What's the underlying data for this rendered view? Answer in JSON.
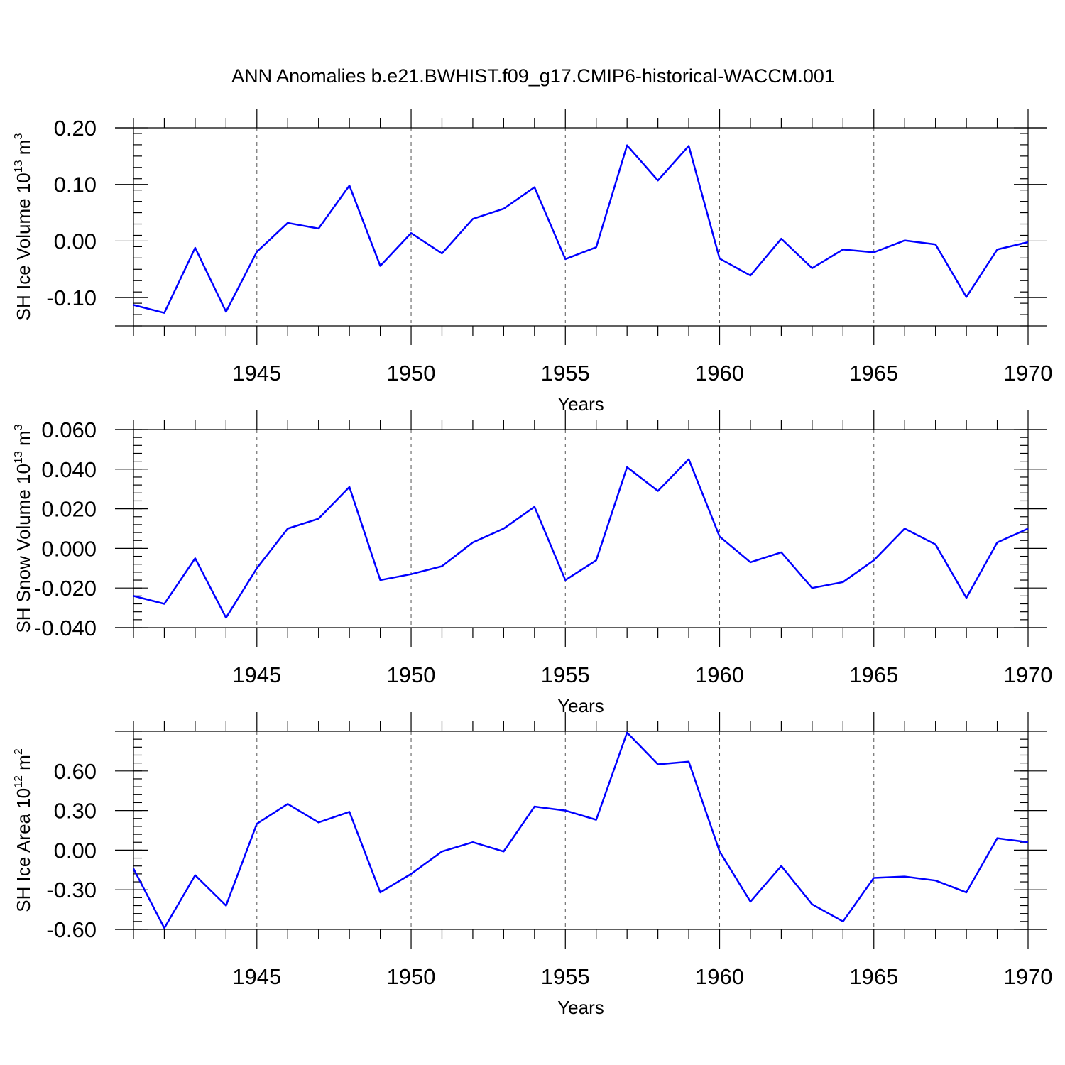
{
  "title": "ANN Anomalies b.e21.BWHIST.f09_g17.CMIP6-historical-WACCM.001",
  "colors": {
    "series": "#0000ff",
    "axis": "#000000",
    "grid": "#555555"
  },
  "chart_data": [
    {
      "type": "line",
      "ylabel_main": "SH Ice Volume 10",
      "ylabel_exp": "13",
      "ylabel_unit": " m",
      "ylabel_unit_exp": "3",
      "xlabel": "Years",
      "xlim": [
        1941,
        1970
      ],
      "ylim": [
        -0.15,
        0.2
      ],
      "yticks": [
        -0.1,
        0.0,
        0.1,
        0.2
      ],
      "ytick_labels": [
        "-0.10",
        "0.00",
        "0.10",
        "0.20"
      ],
      "xticks": [
        1945,
        1950,
        1955,
        1960,
        1965,
        1970
      ],
      "xtick_labels": [
        "1945",
        "1950",
        "1955",
        "1960",
        "1965",
        "1970"
      ],
      "grid_x": [
        1945,
        1950,
        1955,
        1960,
        1965
      ],
      "x": [
        1941,
        1942,
        1943,
        1944,
        1945,
        1946,
        1947,
        1948,
        1949,
        1950,
        1951,
        1952,
        1953,
        1954,
        1955,
        1956,
        1957,
        1958,
        1959,
        1960,
        1961,
        1962,
        1963,
        1964,
        1965,
        1966,
        1967,
        1968,
        1969,
        1970
      ],
      "series": [
        {
          "name": "SH Ice Volume",
          "values": [
            -0.113,
            -0.127,
            -0.012,
            -0.125,
            -0.019,
            0.032,
            0.022,
            0.098,
            -0.044,
            0.014,
            -0.022,
            0.039,
            0.057,
            0.095,
            -0.032,
            -0.011,
            0.169,
            0.107,
            0.168,
            -0.031,
            -0.061,
            0.004,
            -0.048,
            -0.015,
            -0.02,
            0.001,
            -0.006,
            -0.099,
            -0.015,
            -0.002
          ]
        }
      ]
    },
    {
      "type": "line",
      "ylabel_main": "SH Snow Volume 10",
      "ylabel_exp": "13",
      "ylabel_unit": " m",
      "ylabel_unit_exp": "3",
      "xlabel": "Years",
      "xlim": [
        1941,
        1970
      ],
      "ylim": [
        -0.04,
        0.06
      ],
      "yticks": [
        -0.04,
        -0.02,
        0.0,
        0.02,
        0.04,
        0.06
      ],
      "ytick_labels": [
        "-0.040",
        "-0.020",
        "0.000",
        "0.020",
        "0.040",
        "0.060"
      ],
      "xticks": [
        1945,
        1950,
        1955,
        1960,
        1965,
        1970
      ],
      "xtick_labels": [
        "1945",
        "1950",
        "1955",
        "1960",
        "1965",
        "1970"
      ],
      "grid_x": [
        1945,
        1950,
        1955,
        1960,
        1965
      ],
      "x": [
        1941,
        1942,
        1943,
        1944,
        1945,
        1946,
        1947,
        1948,
        1949,
        1950,
        1951,
        1952,
        1953,
        1954,
        1955,
        1956,
        1957,
        1958,
        1959,
        1960,
        1961,
        1962,
        1963,
        1964,
        1965,
        1966,
        1967,
        1968,
        1969,
        1970
      ],
      "series": [
        {
          "name": "SH Snow Volume",
          "values": [
            -0.024,
            -0.028,
            -0.005,
            -0.035,
            -0.01,
            0.01,
            0.015,
            0.031,
            -0.016,
            -0.013,
            -0.009,
            0.003,
            0.01,
            0.021,
            -0.016,
            -0.006,
            0.041,
            0.029,
            0.045,
            0.006,
            -0.007,
            -0.002,
            -0.02,
            -0.017,
            -0.006,
            0.01,
            0.002,
            -0.025,
            0.003,
            0.01
          ]
        }
      ]
    },
    {
      "type": "line",
      "ylabel_main": "SH Ice Area 10",
      "ylabel_exp": "12",
      "ylabel_unit": " m",
      "ylabel_unit_exp": "2",
      "xlabel": "Years",
      "xlim": [
        1941,
        1970
      ],
      "ylim": [
        -0.6,
        0.9
      ],
      "yticks": [
        -0.6,
        -0.3,
        0.0,
        0.3,
        0.6
      ],
      "ytick_labels": [
        "-0.60",
        "-0.30",
        "0.00",
        "0.30",
        "0.60"
      ],
      "xticks": [
        1945,
        1950,
        1955,
        1960,
        1965,
        1970
      ],
      "xtick_labels": [
        "1945",
        "1950",
        "1955",
        "1960",
        "1965",
        "1970"
      ],
      "grid_x": [
        1945,
        1950,
        1955,
        1960,
        1965
      ],
      "x": [
        1941,
        1942,
        1943,
        1944,
        1945,
        1946,
        1947,
        1948,
        1949,
        1950,
        1951,
        1952,
        1953,
        1954,
        1955,
        1956,
        1957,
        1958,
        1959,
        1960,
        1961,
        1962,
        1963,
        1964,
        1965,
        1966,
        1967,
        1968,
        1969,
        1970
      ],
      "series": [
        {
          "name": "SH Ice Area",
          "values": [
            -0.14,
            -0.59,
            -0.19,
            -0.42,
            0.2,
            0.35,
            0.21,
            0.29,
            -0.32,
            -0.18,
            -0.01,
            0.06,
            -0.01,
            0.33,
            0.3,
            0.23,
            0.89,
            0.65,
            0.67,
            -0.01,
            -0.39,
            -0.12,
            -0.41,
            -0.54,
            -0.21,
            -0.2,
            -0.23,
            -0.32,
            0.09,
            0.06
          ]
        }
      ]
    }
  ]
}
